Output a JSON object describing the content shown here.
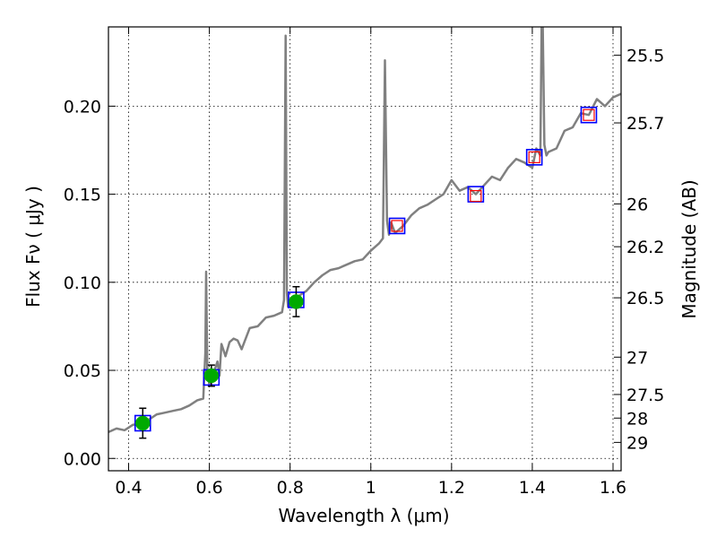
{
  "chart_data": {
    "type": "line",
    "xlabel": "Wavelength  λ (μm)",
    "ylabel": "Flux  Fν  ( μJy )",
    "ylabel_right": "Magnitude (AB)",
    "xlim": [
      0.35,
      1.62
    ],
    "ylim": [
      -0.007,
      0.245
    ],
    "x_ticks": [
      0.4,
      0.6,
      0.8,
      1.0,
      1.2,
      1.4,
      1.6
    ],
    "x_tick_labels": [
      "0.4",
      "0.6",
      "0.8",
      "1",
      "1.2",
      "1.4",
      "1.6"
    ],
    "y_ticks": [
      0.0,
      0.05,
      0.1,
      0.15,
      0.2
    ],
    "y_tick_labels": [
      "0.00",
      "0.05",
      "0.10",
      "0.15",
      "0.20"
    ],
    "right_ticks": [
      {
        "label": "25.5",
        "flux": 0.2289
      },
      {
        "label": "25.7",
        "flux": 0.1905
      },
      {
        "label": "26",
        "flux": 0.1445
      },
      {
        "label": "26.2",
        "flux": 0.1202
      },
      {
        "label": "26.5",
        "flux": 0.0912
      },
      {
        "label": "27",
        "flux": 0.0575
      },
      {
        "label": "27.5",
        "flux": 0.0363
      },
      {
        "label": "28",
        "flux": 0.0229
      },
      {
        "label": "29",
        "flux": 0.0091
      }
    ],
    "grid": true,
    "series": [
      {
        "style": "line",
        "color": "#808080",
        "x": [
          0.35,
          0.37,
          0.39,
          0.41,
          0.43,
          0.45,
          0.47,
          0.49,
          0.51,
          0.53,
          0.55,
          0.57,
          0.585,
          0.59,
          0.592,
          0.595,
          0.6,
          0.61,
          0.62,
          0.625,
          0.63,
          0.64,
          0.65,
          0.66,
          0.67,
          0.68,
          0.7,
          0.72,
          0.74,
          0.76,
          0.78,
          0.785,
          0.789,
          0.792,
          0.795,
          0.8,
          0.82,
          0.84,
          0.86,
          0.88,
          0.9,
          0.92,
          0.94,
          0.96,
          0.98,
          1.0,
          1.02,
          1.03,
          1.035,
          1.04,
          1.045,
          1.05,
          1.06,
          1.08,
          1.1,
          1.12,
          1.14,
          1.16,
          1.18,
          1.2,
          1.22,
          1.24,
          1.26,
          1.28,
          1.3,
          1.32,
          1.34,
          1.36,
          1.38,
          1.4,
          1.41,
          1.42,
          1.423,
          1.426,
          1.43,
          1.435,
          1.44,
          1.46,
          1.48,
          1.5,
          1.52,
          1.54,
          1.56,
          1.58,
          1.6,
          1.62
        ],
        "y": [
          0.015,
          0.017,
          0.016,
          0.019,
          0.02,
          0.022,
          0.025,
          0.026,
          0.027,
          0.028,
          0.03,
          0.033,
          0.034,
          0.06,
          0.106,
          0.05,
          0.042,
          0.048,
          0.055,
          0.047,
          0.065,
          0.058,
          0.066,
          0.068,
          0.067,
          0.062,
          0.074,
          0.075,
          0.08,
          0.081,
          0.083,
          0.09,
          0.24,
          0.094,
          0.086,
          0.088,
          0.092,
          0.095,
          0.1,
          0.104,
          0.107,
          0.108,
          0.11,
          0.112,
          0.113,
          0.118,
          0.122,
          0.125,
          0.226,
          0.135,
          0.127,
          0.134,
          0.128,
          0.132,
          0.138,
          0.142,
          0.144,
          0.147,
          0.15,
          0.158,
          0.152,
          0.154,
          0.15,
          0.155,
          0.16,
          0.158,
          0.165,
          0.17,
          0.168,
          0.165,
          0.176,
          0.172,
          0.245,
          0.245,
          0.178,
          0.172,
          0.174,
          0.176,
          0.186,
          0.188,
          0.196,
          0.195,
          0.204,
          0.2,
          0.205,
          0.207
        ]
      },
      {
        "style": "blue-squares",
        "color": "#0000ff",
        "x": [
          0.435,
          0.605,
          0.815,
          1.065,
          1.26,
          1.405,
          1.54
        ],
        "y": [
          0.02,
          0.046,
          0.09,
          0.132,
          0.15,
          0.171,
          0.195
        ]
      },
      {
        "style": "red-squares",
        "color": "#ff0000",
        "x": [
          1.065,
          1.26,
          1.405,
          1.54
        ],
        "y": [
          0.132,
          0.149,
          0.171,
          0.195
        ]
      },
      {
        "style": "green-points-with-errorbars",
        "color": "#00aa00",
        "x": [
          0.435,
          0.605,
          0.815
        ],
        "y": [
          0.02,
          0.047,
          0.089
        ],
        "yerr": [
          0.0085,
          0.006,
          0.0085
        ]
      }
    ]
  }
}
